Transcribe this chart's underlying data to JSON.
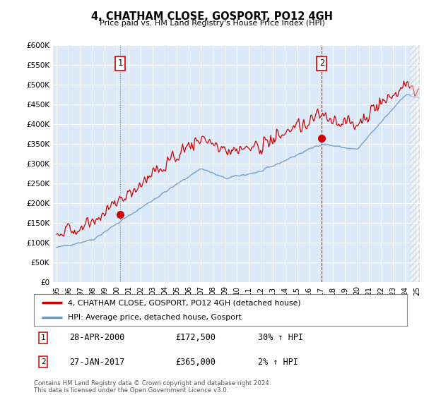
{
  "title": "4, CHATHAM CLOSE, GOSPORT, PO12 4GH",
  "subtitle": "Price paid vs. HM Land Registry's House Price Index (HPI)",
  "legend_label_red": "4, CHATHAM CLOSE, GOSPORT, PO12 4GH (detached house)",
  "legend_label_blue": "HPI: Average price, detached house, Gosport",
  "annotation1_date": "28-APR-2000",
  "annotation1_price": "£172,500",
  "annotation1_hpi": "30% ↑ HPI",
  "annotation2_date": "27-JAN-2017",
  "annotation2_price": "£365,000",
  "annotation2_hpi": "2% ↑ HPI",
  "footer": "Contains HM Land Registry data © Crown copyright and database right 2024.\nThis data is licensed under the Open Government Licence v3.0.",
  "ylim": [
    0,
    600000
  ],
  "yticks": [
    0,
    50000,
    100000,
    150000,
    200000,
    250000,
    300000,
    350000,
    400000,
    450000,
    500000,
    550000,
    600000
  ],
  "ytick_labels": [
    "£0",
    "£50K",
    "£100K",
    "£150K",
    "£200K",
    "£250K",
    "£300K",
    "£350K",
    "£400K",
    "£450K",
    "£500K",
    "£550K",
    "£600K"
  ],
  "background_color": "#dce9f8",
  "grid_color": "#ffffff",
  "red_color": "#cc0000",
  "blue_color": "#6699cc",
  "vline1_color": "#888888",
  "vline2_color": "#cc0000",
  "sale1_year": 2000.29,
  "sale1_price": 172500,
  "sale2_year": 2017.08,
  "sale2_price": 365000
}
